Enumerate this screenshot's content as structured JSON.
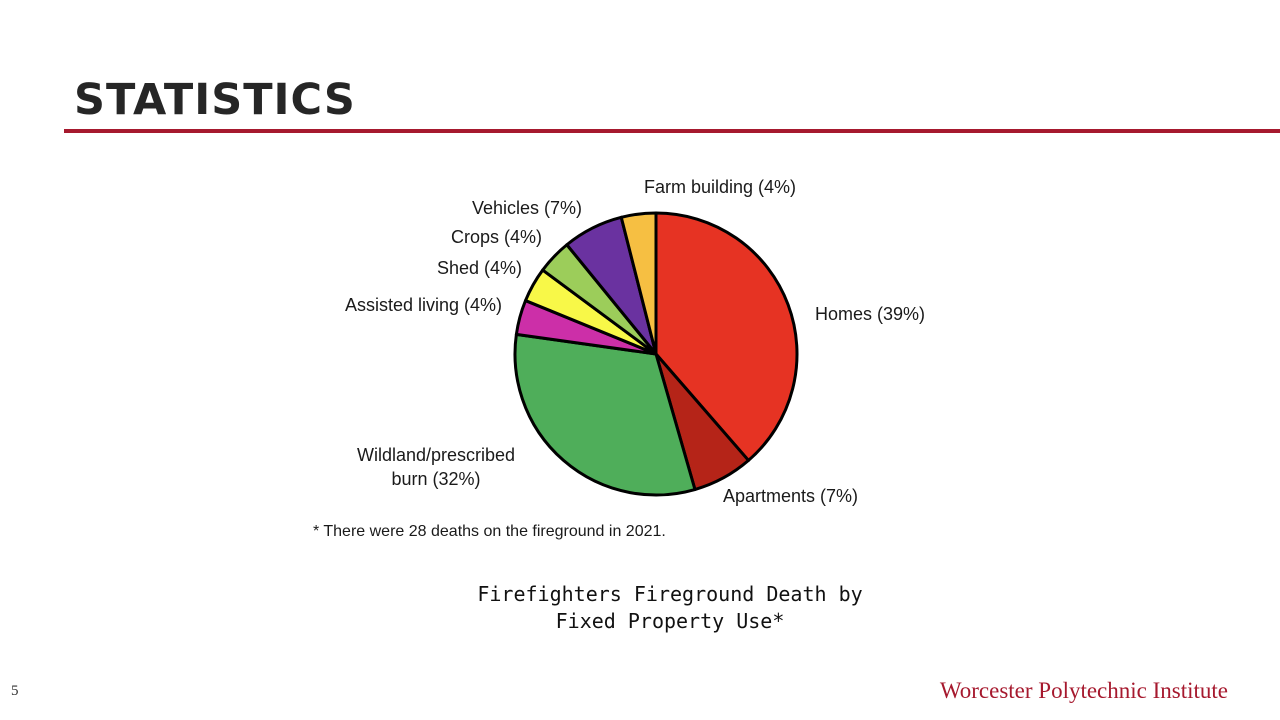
{
  "slide": {
    "title": "STATISTICS",
    "page_number": "5",
    "institution": "Worcester Polytechnic Institute",
    "caption_line1": "Firefighters Fireground Death by",
    "caption_line2": "Fixed Property Use*"
  },
  "colors": {
    "accent": "#a6192e",
    "title_text": "#262626"
  },
  "chart_data": {
    "type": "pie",
    "footnote": "* There were 28 deaths on the fireground in 2021.",
    "start": "12 o'clock",
    "direction": "clockwise",
    "slices": [
      {
        "label": "Homes (39%)",
        "value": 39,
        "color": "#e63323"
      },
      {
        "label": "Apartments (7%)",
        "value": 7,
        "color": "#b52418"
      },
      {
        "label": "Wildland/prescribed burn (32%)",
        "label_lines": [
          "Wildland/prescribed",
          "burn (32%)"
        ],
        "value": 32,
        "color": "#4fae5a"
      },
      {
        "label": "Assisted living (4%)",
        "value": 4,
        "color": "#cc2fa8"
      },
      {
        "label": "Shed (4%)",
        "value": 4,
        "color": "#f8f848"
      },
      {
        "label": "Crops (4%)",
        "value": 4,
        "color": "#9ccd5a"
      },
      {
        "label": "Vehicles (7%)",
        "value": 7,
        "color": "#6a32a0"
      },
      {
        "label": "Farm building (4%)",
        "value": 4,
        "color": "#f6bf42"
      }
    ]
  }
}
